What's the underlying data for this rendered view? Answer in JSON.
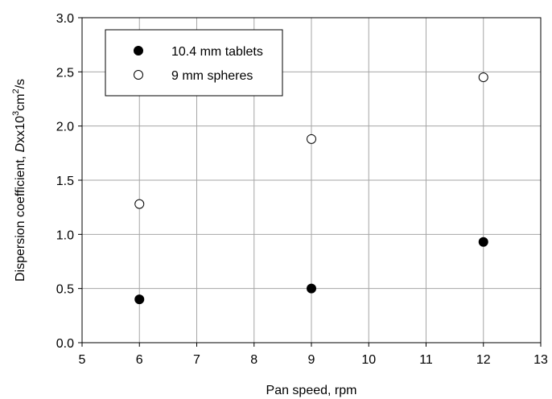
{
  "chart_data": {
    "type": "scatter",
    "xlabel": "Pan speed, rpm",
    "ylabel": {
      "prefix": "Dispersion coefficient, ",
      "var": "D",
      "mid": "xx10",
      "sup1": "3",
      "unit": "cm",
      "sup2": "2",
      "suffix": "/s"
    },
    "xlim": [
      5,
      13
    ],
    "ylim": [
      0,
      3
    ],
    "x_ticks": [
      "5",
      "6",
      "7",
      "8",
      "9",
      "10",
      "11",
      "12",
      "13"
    ],
    "y_ticks": [
      "0.0",
      "0.5",
      "1.0",
      "1.5",
      "2.0",
      "2.5",
      "3.0"
    ],
    "grid": true,
    "legend_position": "top-left",
    "series": [
      {
        "name": "10.4 mm tablets",
        "marker": "filled-circle",
        "color": "#000000",
        "points": [
          {
            "x": 6,
            "y": 0.4
          },
          {
            "x": 9,
            "y": 0.5
          },
          {
            "x": 12,
            "y": 0.93
          }
        ]
      },
      {
        "name": "9 mm spheres",
        "marker": "open-circle",
        "color": "#000000",
        "points": [
          {
            "x": 6,
            "y": 1.28
          },
          {
            "x": 9,
            "y": 1.88
          },
          {
            "x": 12,
            "y": 2.45
          }
        ]
      }
    ]
  }
}
